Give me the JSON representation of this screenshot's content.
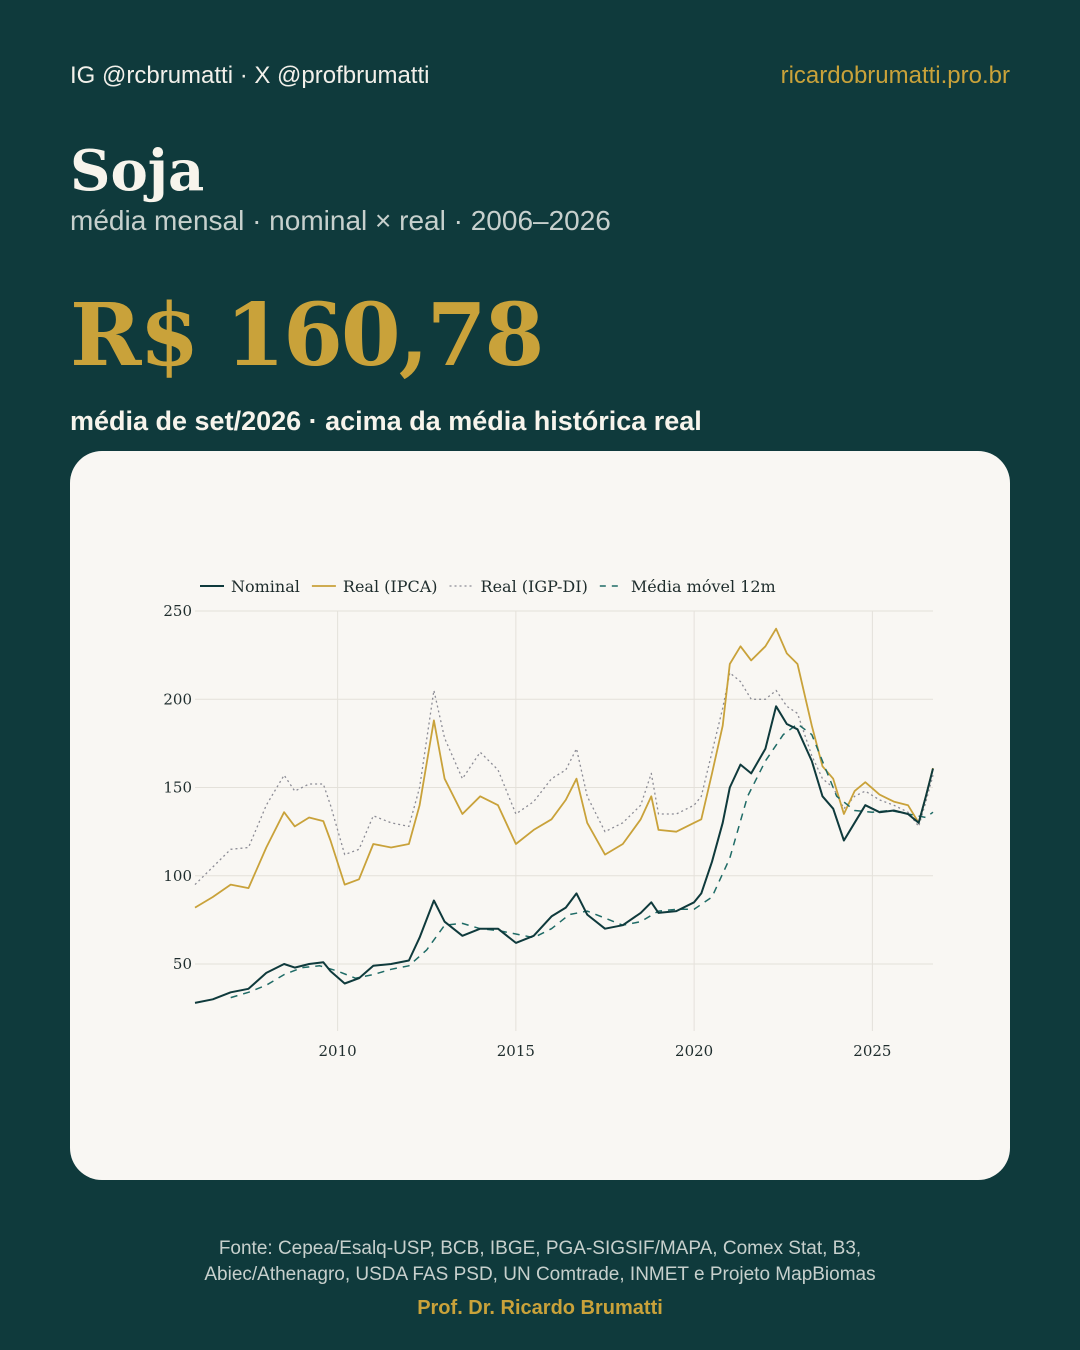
{
  "header": {
    "handles": "IG @rcbrumatti · X @profbrumatti",
    "site": "ricardobrumatti.pro.br"
  },
  "title": "Soja",
  "subtitle": "média mensal · nominal × real · 2006–2026",
  "headline_value": "R$ 160,78",
  "caption": "média de set/2026 · acima da média histórica real",
  "footer": {
    "source_line1": "Fonte: Cepea/Esalq-USP, BCB, IBGE, PGA-SIGSIF/MAPA, Comex Stat, B3,",
    "source_line2": "Abiec/Athenagro, USDA FAS PSD, UN Comtrade, INMET e Projeto MapBiomas",
    "author": "Prof. Dr. Ricardo Brumatti"
  },
  "colors": {
    "background": "#0f3a3c",
    "accent": "#c9a23a",
    "nominal": "#0f3a3c",
    "real_ipca": "#c9a23a",
    "real_igpdi": "#8c8c95",
    "moving_avg": "#1f6b66"
  },
  "chart_data": {
    "type": "line",
    "title": "",
    "xlabel": "",
    "ylabel": "",
    "xlim": [
      2006.0,
      2026.7
    ],
    "ylim": [
      20,
      250
    ],
    "xticks": [
      2010,
      2015,
      2020,
      2025
    ],
    "yticks": [
      50,
      100,
      150,
      200,
      250
    ],
    "grid": true,
    "legend_position": "top-left",
    "series": [
      {
        "name": "Nominal",
        "style": "solid",
        "points": [
          [
            2006.0,
            28
          ],
          [
            2006.5,
            30
          ],
          [
            2007.0,
            34
          ],
          [
            2007.5,
            36
          ],
          [
            2008.0,
            45
          ],
          [
            2008.5,
            50
          ],
          [
            2008.8,
            48
          ],
          [
            2009.2,
            50
          ],
          [
            2009.6,
            51
          ],
          [
            2009.8,
            46
          ],
          [
            2010.2,
            39
          ],
          [
            2010.6,
            42
          ],
          [
            2011.0,
            49
          ],
          [
            2011.5,
            50
          ],
          [
            2012.0,
            52
          ],
          [
            2012.3,
            65
          ],
          [
            2012.7,
            86
          ],
          [
            2013.0,
            74
          ],
          [
            2013.5,
            66
          ],
          [
            2014.0,
            70
          ],
          [
            2014.5,
            70
          ],
          [
            2015.0,
            62
          ],
          [
            2015.5,
            66
          ],
          [
            2016.0,
            77
          ],
          [
            2016.4,
            82
          ],
          [
            2016.7,
            90
          ],
          [
            2017.0,
            78
          ],
          [
            2017.5,
            70
          ],
          [
            2018.0,
            72
          ],
          [
            2018.5,
            79
          ],
          [
            2018.8,
            85
          ],
          [
            2019.0,
            79
          ],
          [
            2019.5,
            80
          ],
          [
            2020.0,
            85
          ],
          [
            2020.2,
            90
          ],
          [
            2020.5,
            108
          ],
          [
            2020.8,
            130
          ],
          [
            2021.0,
            150
          ],
          [
            2021.3,
            163
          ],
          [
            2021.6,
            158
          ],
          [
            2022.0,
            172
          ],
          [
            2022.3,
            196
          ],
          [
            2022.6,
            186
          ],
          [
            2022.9,
            183
          ],
          [
            2023.3,
            165
          ],
          [
            2023.6,
            145
          ],
          [
            2023.9,
            138
          ],
          [
            2024.2,
            120
          ],
          [
            2024.5,
            130
          ],
          [
            2024.8,
            140
          ],
          [
            2025.2,
            136
          ],
          [
            2025.6,
            137
          ],
          [
            2026.0,
            135
          ],
          [
            2026.3,
            130
          ],
          [
            2026.5,
            145
          ],
          [
            2026.7,
            160.78
          ]
        ]
      },
      {
        "name": "Real (IPCA)",
        "style": "solid",
        "points": [
          [
            2006.0,
            82
          ],
          [
            2006.5,
            88
          ],
          [
            2007.0,
            95
          ],
          [
            2007.5,
            93
          ],
          [
            2008.0,
            116
          ],
          [
            2008.5,
            136
          ],
          [
            2008.8,
            128
          ],
          [
            2009.2,
            133
          ],
          [
            2009.6,
            131
          ],
          [
            2009.8,
            120
          ],
          [
            2010.2,
            95
          ],
          [
            2010.6,
            98
          ],
          [
            2011.0,
            118
          ],
          [
            2011.5,
            116
          ],
          [
            2012.0,
            118
          ],
          [
            2012.3,
            140
          ],
          [
            2012.7,
            188
          ],
          [
            2013.0,
            155
          ],
          [
            2013.5,
            135
          ],
          [
            2014.0,
            145
          ],
          [
            2014.5,
            140
          ],
          [
            2015.0,
            118
          ],
          [
            2015.5,
            126
          ],
          [
            2016.0,
            132
          ],
          [
            2016.4,
            143
          ],
          [
            2016.7,
            155
          ],
          [
            2017.0,
            130
          ],
          [
            2017.5,
            112
          ],
          [
            2018.0,
            118
          ],
          [
            2018.5,
            132
          ],
          [
            2018.8,
            145
          ],
          [
            2019.0,
            126
          ],
          [
            2019.5,
            125
          ],
          [
            2020.0,
            130
          ],
          [
            2020.2,
            132
          ],
          [
            2020.5,
            158
          ],
          [
            2020.8,
            185
          ],
          [
            2021.0,
            220
          ],
          [
            2021.3,
            230
          ],
          [
            2021.6,
            222
          ],
          [
            2022.0,
            230
          ],
          [
            2022.3,
            240
          ],
          [
            2022.6,
            226
          ],
          [
            2022.9,
            220
          ],
          [
            2023.3,
            185
          ],
          [
            2023.6,
            162
          ],
          [
            2023.9,
            155
          ],
          [
            2024.2,
            135
          ],
          [
            2024.5,
            148
          ],
          [
            2024.8,
            153
          ],
          [
            2025.2,
            146
          ],
          [
            2025.6,
            142
          ],
          [
            2026.0,
            140
          ],
          [
            2026.3,
            130
          ],
          [
            2026.5,
            145
          ],
          [
            2026.7,
            161
          ]
        ]
      },
      {
        "name": "Real (IGP-DI)",
        "style": "dotted",
        "points": [
          [
            2006.0,
            95
          ],
          [
            2006.5,
            105
          ],
          [
            2007.0,
            115
          ],
          [
            2007.5,
            116
          ],
          [
            2008.0,
            140
          ],
          [
            2008.5,
            157
          ],
          [
            2008.8,
            148
          ],
          [
            2009.2,
            152
          ],
          [
            2009.6,
            152
          ],
          [
            2009.8,
            140
          ],
          [
            2010.2,
            112
          ],
          [
            2010.6,
            115
          ],
          [
            2011.0,
            134
          ],
          [
            2011.5,
            130
          ],
          [
            2012.0,
            128
          ],
          [
            2012.3,
            150
          ],
          [
            2012.7,
            205
          ],
          [
            2013.0,
            178
          ],
          [
            2013.5,
            155
          ],
          [
            2014.0,
            170
          ],
          [
            2014.5,
            160
          ],
          [
            2015.0,
            135
          ],
          [
            2015.5,
            142
          ],
          [
            2016.0,
            155
          ],
          [
            2016.4,
            160
          ],
          [
            2016.7,
            172
          ],
          [
            2017.0,
            145
          ],
          [
            2017.5,
            125
          ],
          [
            2018.0,
            130
          ],
          [
            2018.5,
            140
          ],
          [
            2018.8,
            158
          ],
          [
            2019.0,
            135
          ],
          [
            2019.5,
            135
          ],
          [
            2020.0,
            140
          ],
          [
            2020.2,
            145
          ],
          [
            2020.5,
            170
          ],
          [
            2020.8,
            195
          ],
          [
            2021.0,
            215
          ],
          [
            2021.3,
            210
          ],
          [
            2021.6,
            200
          ],
          [
            2022.0,
            200
          ],
          [
            2022.3,
            205
          ],
          [
            2022.6,
            196
          ],
          [
            2022.9,
            192
          ],
          [
            2023.3,
            168
          ],
          [
            2023.6,
            155
          ],
          [
            2023.9,
            150
          ],
          [
            2024.2,
            138
          ],
          [
            2024.5,
            145
          ],
          [
            2024.8,
            148
          ],
          [
            2025.2,
            143
          ],
          [
            2025.6,
            140
          ],
          [
            2026.0,
            136
          ],
          [
            2026.3,
            128
          ],
          [
            2026.5,
            142
          ],
          [
            2026.7,
            157
          ]
        ]
      },
      {
        "name": "Média móvel 12m",
        "style": "dashed",
        "points": [
          [
            2007.0,
            31
          ],
          [
            2007.5,
            34
          ],
          [
            2008.0,
            38
          ],
          [
            2008.5,
            44
          ],
          [
            2009.0,
            48
          ],
          [
            2009.5,
            49
          ],
          [
            2010.0,
            46
          ],
          [
            2010.5,
            42
          ],
          [
            2011.0,
            44
          ],
          [
            2011.5,
            47
          ],
          [
            2012.0,
            49
          ],
          [
            2012.5,
            58
          ],
          [
            2013.0,
            72
          ],
          [
            2013.5,
            73
          ],
          [
            2014.0,
            70
          ],
          [
            2014.5,
            69
          ],
          [
            2015.0,
            67
          ],
          [
            2015.5,
            65
          ],
          [
            2016.0,
            70
          ],
          [
            2016.5,
            78
          ],
          [
            2017.0,
            80
          ],
          [
            2017.5,
            76
          ],
          [
            2018.0,
            72
          ],
          [
            2018.5,
            74
          ],
          [
            2019.0,
            80
          ],
          [
            2019.5,
            81
          ],
          [
            2020.0,
            81
          ],
          [
            2020.5,
            88
          ],
          [
            2021.0,
            110
          ],
          [
            2021.5,
            145
          ],
          [
            2022.0,
            165
          ],
          [
            2022.5,
            180
          ],
          [
            2022.9,
            186
          ],
          [
            2023.3,
            180
          ],
          [
            2023.7,
            160
          ],
          [
            2024.0,
            145
          ],
          [
            2024.5,
            137
          ],
          [
            2025.0,
            136
          ],
          [
            2025.5,
            137
          ],
          [
            2026.0,
            135
          ],
          [
            2026.5,
            133
          ],
          [
            2026.7,
            136
          ]
        ]
      }
    ]
  }
}
